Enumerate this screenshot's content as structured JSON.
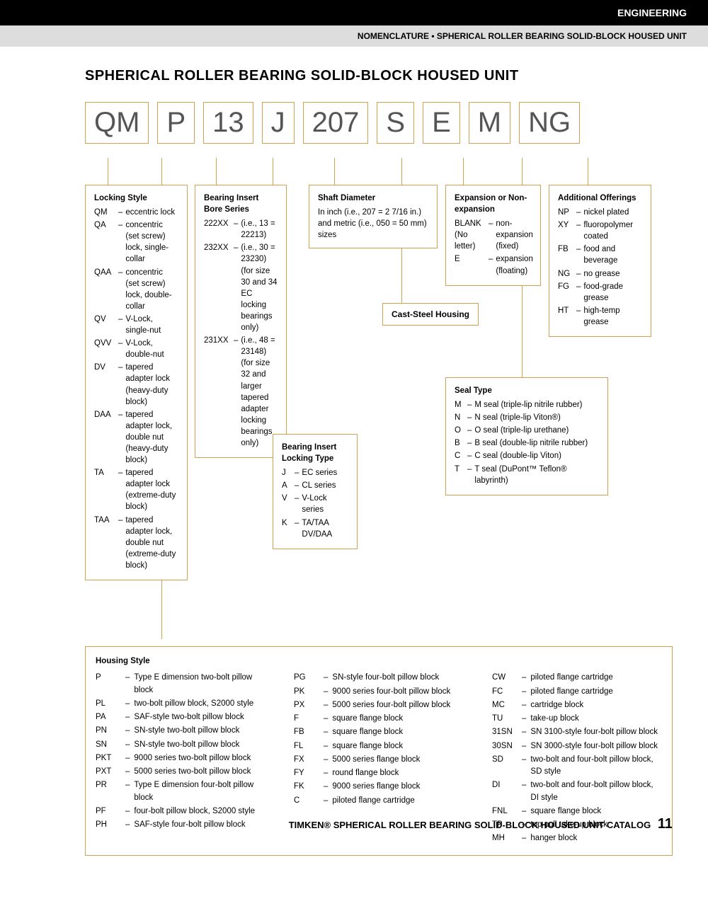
{
  "header": {
    "black_bar": "ENGINEERING",
    "gray_bar": "NOMENCLATURE • SPHERICAL ROLLER BEARING SOLID-BLOCK HOUSED UNIT"
  },
  "main_title": "SPHERICAL ROLLER BEARING SOLID-BLOCK HOUSED UNIT",
  "codes": [
    "QM",
    "P",
    "13",
    "J",
    "207",
    "S",
    "E",
    "M",
    "NG"
  ],
  "locking_style": {
    "title": "Locking Style",
    "items": [
      {
        "code": "QM",
        "text": "eccentric lock"
      },
      {
        "code": "QA",
        "text": "concentric (set screw) lock, single-collar"
      },
      {
        "code": "QAA",
        "text": "concentric (set screw) lock, double-collar"
      },
      {
        "code": "QV",
        "text": "V-Lock, single-nut"
      },
      {
        "code": "QVV",
        "text": "V-Lock, double-nut"
      },
      {
        "code": "DV",
        "text": "tapered adapter lock (heavy-duty block)"
      },
      {
        "code": "DAA",
        "text": "tapered adapter lock, double nut (heavy-duty block)"
      },
      {
        "code": "TA",
        "text": "tapered adapter lock (extreme-duty block)"
      },
      {
        "code": "TAA",
        "text": "tapered adapter lock, double nut (extreme-duty block)"
      }
    ]
  },
  "bearing_insert": {
    "title": "Bearing Insert Bore Series",
    "items": [
      {
        "code": "222XX",
        "text": "(i.e., 13 = 22213)"
      },
      {
        "code": "232XX",
        "text": "(i.e., 30 = 23230) (for size 30 and 34 EC locking bearings only)"
      },
      {
        "code": "231XX",
        "text": "(i.e., 48 = 23148) (for size 32 and larger tapered adapter locking bearings only)"
      }
    ]
  },
  "locking_type": {
    "title": "Bearing Insert Locking Type",
    "items": [
      {
        "code": "J",
        "text": "EC series"
      },
      {
        "code": "A",
        "text": "CL series"
      },
      {
        "code": "V",
        "text": "V-Lock series"
      },
      {
        "code": "K",
        "text": "TA/TAA DV/DAA"
      }
    ]
  },
  "shaft_diameter": {
    "title": "Shaft Diameter",
    "text": "In inch (i.e., 207 = 2 7/16 in.) and metric (i.e., 050 = 50 mm) sizes"
  },
  "cast_steel": "Cast-Steel Housing",
  "expansion": {
    "title": "Expansion or Non-expansion",
    "items": [
      {
        "code": "BLANK (No letter)",
        "text": "non-expansion (fixed)"
      },
      {
        "code": "E",
        "text": "expansion (floating)"
      }
    ]
  },
  "seal_type": {
    "title": "Seal Type",
    "items": [
      {
        "code": "M",
        "text": "M seal (triple-lip nitrile rubber)"
      },
      {
        "code": "N",
        "text": "N seal (triple-lip Viton®)"
      },
      {
        "code": "O",
        "text": "O seal (triple-lip urethane)"
      },
      {
        "code": "B",
        "text": "B seal (double-lip nitrile rubber)"
      },
      {
        "code": "C",
        "text": "C seal (double-lip Viton)"
      },
      {
        "code": "T",
        "text": "T seal (DuPont™ Teflon® labyrinth)"
      }
    ]
  },
  "additional": {
    "title": "Additional Offerings",
    "items": [
      {
        "code": "NP",
        "text": "nickel plated"
      },
      {
        "code": "XY",
        "text": "fluoropolymer coated"
      },
      {
        "code": "FB",
        "text": "food and beverage"
      },
      {
        "code": "NG",
        "text": "no grease"
      },
      {
        "code": "FG",
        "text": "food-grade grease"
      },
      {
        "code": "HT",
        "text": "high-temp grease"
      }
    ]
  },
  "housing": {
    "title": "Housing Style",
    "col1": [
      {
        "code": "P",
        "text": "Type E dimension two-bolt pillow block"
      },
      {
        "code": "PL",
        "text": "two-bolt pillow block, S2000 style"
      },
      {
        "code": "PA",
        "text": "SAF-style two-bolt pillow block"
      },
      {
        "code": "PN",
        "text": "SN-style two-bolt pillow block"
      },
      {
        "code": "SN",
        "text": "SN-style two-bolt pillow block"
      },
      {
        "code": "PKT",
        "text": "9000 series two-bolt pillow block"
      },
      {
        "code": "PXT",
        "text": "5000 series two-bolt pillow block"
      },
      {
        "code": "PR",
        "text": "Type E dimension four-bolt pillow block"
      },
      {
        "code": "PF",
        "text": "four-bolt pillow block, S2000 style"
      },
      {
        "code": "PH",
        "text": "SAF-style four-bolt pillow block"
      }
    ],
    "col2": [
      {
        "code": "PG",
        "text": "SN-style four-bolt pillow block"
      },
      {
        "code": "PK",
        "text": "9000 series four-bolt pillow block"
      },
      {
        "code": "PX",
        "text": "5000 series four-bolt pillow block"
      },
      {
        "code": "F",
        "text": "square flange block"
      },
      {
        "code": "FB",
        "text": "square flange block"
      },
      {
        "code": "FL",
        "text": "square flange block"
      },
      {
        "code": "FX",
        "text": "5000 series flange block"
      },
      {
        "code": "FY",
        "text": "round flange block"
      },
      {
        "code": "FK",
        "text": "9000 series flange block"
      },
      {
        "code": "C",
        "text": "piloted flange cartridge"
      }
    ],
    "col3": [
      {
        "code": "CW",
        "text": "piloted flange cartridge"
      },
      {
        "code": "FC",
        "text": "piloted flange cartridge"
      },
      {
        "code": "MC",
        "text": "cartridge block"
      },
      {
        "code": "TU",
        "text": "take-up block"
      },
      {
        "code": "31SN",
        "text": "SN 3100-style four-bolt pillow block"
      },
      {
        "code": "30SN",
        "text": "SN 3000-style four-bolt pillow block"
      },
      {
        "code": "SD",
        "text": "two-bolt and four-bolt pillow block, SD style"
      },
      {
        "code": "DI",
        "text": "two-bolt and four-bolt pillow block, DI style"
      },
      {
        "code": "FNL",
        "text": "square flange block"
      },
      {
        "code": "TP",
        "text": "top pull take-up block"
      },
      {
        "code": "MH",
        "text": "hanger block"
      }
    ]
  },
  "footer": {
    "text": "TIMKEN® SPHERICAL ROLLER BEARING SOLID-BLOCK HOUSED UNIT CATALOG",
    "page": "11"
  },
  "colors": {
    "border": "#d4a050",
    "code_text": "#555555"
  }
}
